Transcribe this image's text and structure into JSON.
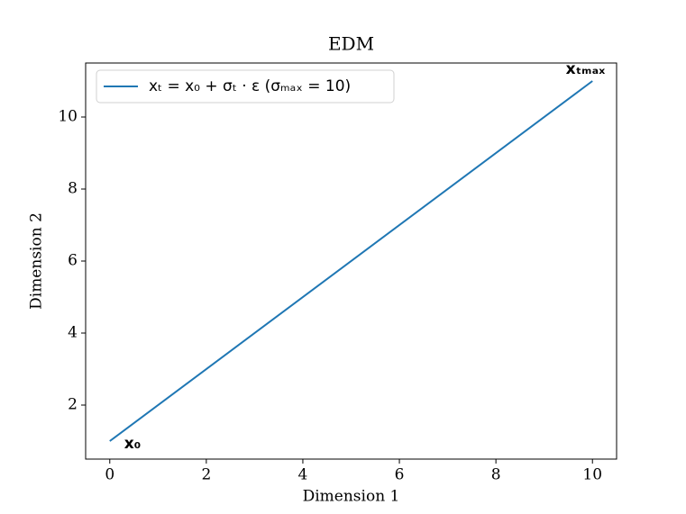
{
  "chart_data": {
    "type": "line",
    "title": "EDM",
    "xlabel": "Dimension 1",
    "ylabel": "Dimension 2",
    "x": [
      0,
      10
    ],
    "series": [
      {
        "name": "xₜ = x₀ + σₜ · ε   (σₘₐₓ = 10)",
        "color": "#1f77b4",
        "values": [
          1,
          11
        ]
      }
    ],
    "xlim": [
      -0.5,
      10.5
    ],
    "ylim": [
      0.5,
      11.5
    ],
    "xticks": [
      0,
      2,
      4,
      6,
      8,
      10
    ],
    "yticks": [
      2,
      4,
      6,
      8,
      10
    ],
    "grid": false,
    "legend": "upper left",
    "annotations": [
      "x₀",
      "xₜₘₐₓ"
    ]
  }
}
